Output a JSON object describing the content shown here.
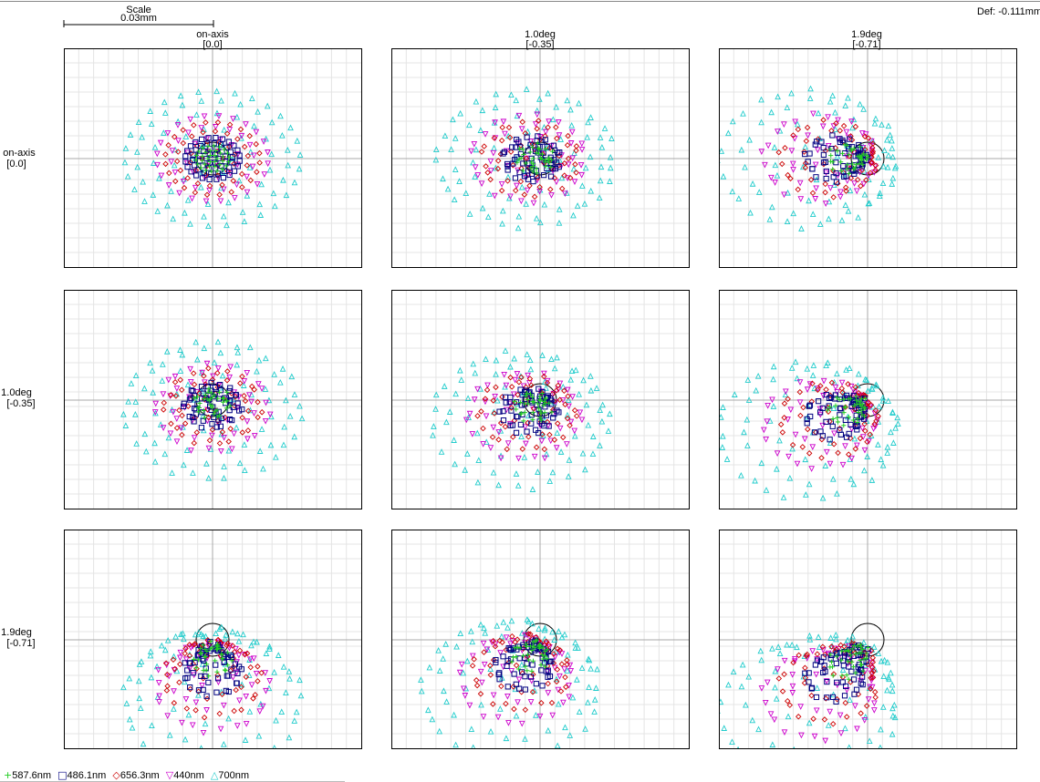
{
  "header": {
    "scale_title": "Scale",
    "scale_value": "0.03mm",
    "defocus": "Def: -0.111mm"
  },
  "columns": [
    {
      "label": "on-axis",
      "sub": "[0.0]"
    },
    {
      "label": "1.0deg",
      "sub": "[-0.35]"
    },
    {
      "label": "1.9deg",
      "sub": "[-0.71]"
    }
  ],
  "rows": [
    {
      "label": "on-axis",
      "sub": "[0.0]"
    },
    {
      "label": "1.0deg",
      "sub": "[-0.35]"
    },
    {
      "label": "1.9deg",
      "sub": "[-0.71]"
    }
  ],
  "legend": [
    {
      "symbol": "+",
      "label": "587.6nm",
      "color": "#22cc22"
    },
    {
      "symbol": "□",
      "label": "486.1nm",
      "color": "#000080"
    },
    {
      "symbol": "◇",
      "label": "656.3nm",
      "color": "#cc0000"
    },
    {
      "symbol": "▽",
      "label": "440nm",
      "color": "#cc00cc"
    },
    {
      "symbol": "△",
      "label": "700nm",
      "color": "#22cccc"
    }
  ],
  "chart_data": {
    "type": "scatter",
    "grid": true,
    "layout": "3x3 spot diagram grid",
    "series": [
      {
        "name": "587.6nm",
        "marker": "plus",
        "color": "#22cc22"
      },
      {
        "name": "486.1nm",
        "marker": "square",
        "color": "#000080"
      },
      {
        "name": "656.3nm",
        "marker": "diamond",
        "color": "#cc0000"
      },
      {
        "name": "440nm",
        "marker": "triangle-down",
        "color": "#cc00cc"
      },
      {
        "name": "700nm",
        "marker": "triangle-up",
        "color": "#22cccc"
      }
    ],
    "panels": [
      {
        "row": 0,
        "col": 0,
        "shift": [
          0,
          0
        ],
        "circle_center": [
          0,
          0
        ]
      },
      {
        "row": 0,
        "col": 1,
        "shift": [
          -0.003,
          0
        ],
        "circle_center": [
          0,
          0
        ]
      },
      {
        "row": 0,
        "col": 2,
        "shift": [
          -0.012,
          0
        ],
        "circle_center": [
          0,
          0
        ]
      },
      {
        "row": 1,
        "col": 0,
        "shift": [
          0,
          -0.002
        ],
        "circle_center": [
          0,
          0
        ]
      },
      {
        "row": 1,
        "col": 1,
        "shift": [
          -0.004,
          -0.004
        ],
        "circle_center": [
          0,
          0
        ]
      },
      {
        "row": 1,
        "col": 2,
        "shift": [
          -0.012,
          -0.006
        ],
        "circle_center": [
          0,
          0
        ]
      },
      {
        "row": 2,
        "col": 0,
        "shift": [
          0,
          -0.012
        ],
        "circle_center": [
          0,
          0
        ]
      },
      {
        "row": 2,
        "col": 1,
        "shift": [
          -0.006,
          -0.01
        ],
        "circle_center": [
          0,
          0
        ]
      },
      {
        "row": 2,
        "col": 2,
        "shift": [
          -0.012,
          -0.014
        ],
        "circle_center": [
          0,
          0
        ]
      }
    ]
  }
}
